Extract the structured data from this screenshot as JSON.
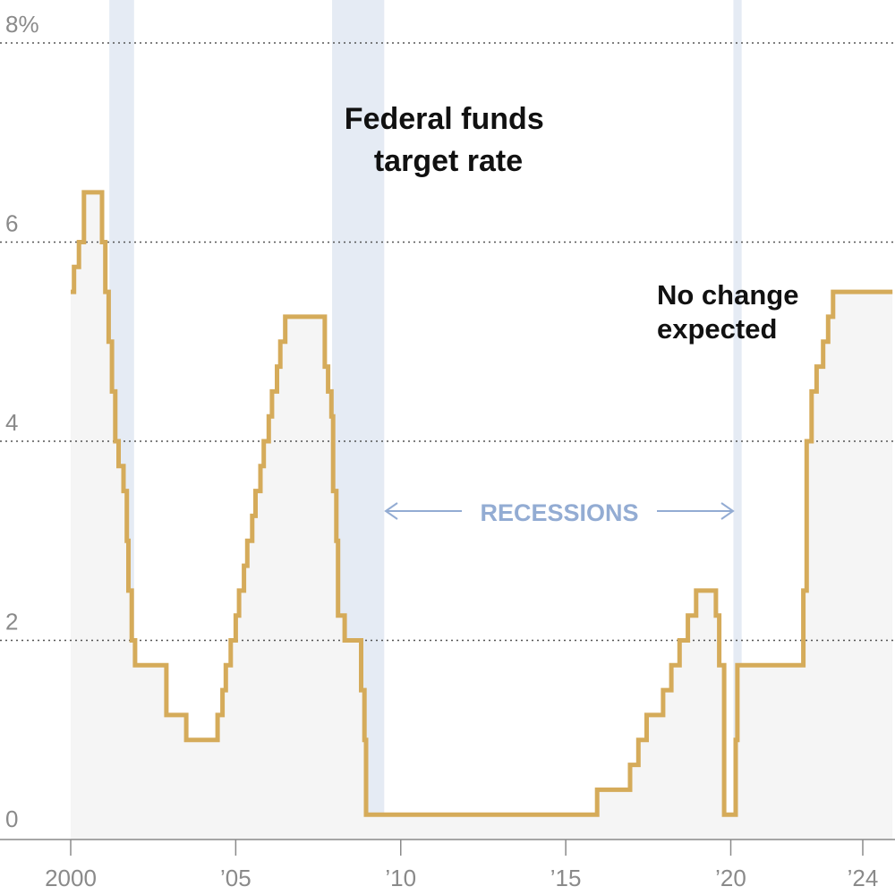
{
  "chart_data": {
    "type": "line",
    "step": true,
    "title_lines": [
      "Federal funds",
      "target rate"
    ],
    "annotation_lines": [
      "No change",
      "expected"
    ],
    "recession_label": "RECESSIONS",
    "xlim": [
      2000,
      2024.9
    ],
    "ylim": [
      0,
      8
    ],
    "y_ticks": [
      {
        "value": 0,
        "label": "0"
      },
      {
        "value": 2,
        "label": "2"
      },
      {
        "value": 4,
        "label": "4"
      },
      {
        "value": 6,
        "label": "6"
      },
      {
        "value": 8,
        "label": "8%"
      }
    ],
    "x_ticks": [
      {
        "value": 2000,
        "label": "2000"
      },
      {
        "value": 2005,
        "label": "’05"
      },
      {
        "value": 2010,
        "label": "’10"
      },
      {
        "value": 2015,
        "label": "’15"
      },
      {
        "value": 2020,
        "label": "’20"
      },
      {
        "value": 2024,
        "label": "’24"
      }
    ],
    "recessions": [
      {
        "start": 2001.17,
        "end": 2001.92
      },
      {
        "start": 2007.92,
        "end": 2009.5
      },
      {
        "start": 2020.08,
        "end": 2020.33
      }
    ],
    "series": [
      {
        "color": "#d5ab5a",
        "x": [
          2000.0,
          2000.1,
          2000.25,
          2000.4,
          2000.95,
          2001.05,
          2001.15,
          2001.25,
          2001.35,
          2001.45,
          2001.6,
          2001.7,
          2001.75,
          2001.85,
          2001.95,
          2002.9,
          2003.5,
          2004.45,
          2004.6,
          2004.7,
          2004.85,
          2005.0,
          2005.1,
          2005.25,
          2005.35,
          2005.5,
          2005.6,
          2005.75,
          2005.85,
          2006.0,
          2006.1,
          2006.25,
          2006.35,
          2006.5,
          2007.7,
          2007.8,
          2007.9,
          2007.95,
          2008.05,
          2008.1,
          2008.3,
          2008.8,
          2008.9,
          2008.95,
          2015.95,
          2016.95,
          2017.2,
          2017.45,
          2017.95,
          2018.2,
          2018.45,
          2018.7,
          2018.95,
          2019.55,
          2019.65,
          2019.8,
          2020.15,
          2020.2,
          2022.2,
          2022.3,
          2022.45,
          2022.6,
          2022.8,
          2022.95,
          2023.1,
          2023.35,
          2023.55,
          2024.9
        ],
        "y": [
          5.5,
          5.75,
          6.0,
          6.5,
          6.0,
          5.5,
          5.0,
          4.5,
          4.0,
          3.75,
          3.5,
          3.0,
          2.5,
          2.0,
          1.75,
          1.25,
          1.0,
          1.25,
          1.5,
          1.75,
          2.0,
          2.25,
          2.5,
          2.75,
          3.0,
          3.25,
          3.5,
          3.75,
          4.0,
          4.25,
          4.5,
          4.75,
          5.0,
          5.25,
          4.75,
          4.5,
          4.25,
          3.5,
          3.0,
          2.25,
          2.0,
          1.5,
          1.0,
          0.25,
          0.5,
          0.75,
          1.0,
          1.25,
          1.5,
          1.75,
          2.0,
          2.25,
          2.5,
          2.25,
          1.75,
          0.25,
          1.0,
          1.75,
          2.5,
          4.0,
          4.5,
          4.75,
          5.0,
          5.25,
          5.5,
          5.5,
          5.5,
          5.5
        ]
      }
    ]
  }
}
